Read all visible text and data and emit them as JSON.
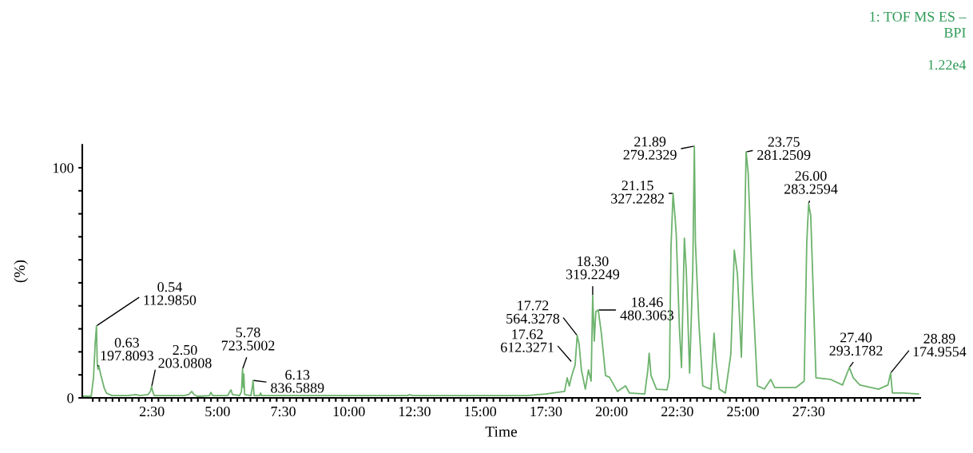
{
  "chart_data": {
    "type": "line",
    "xlabel": "Time",
    "ylabel": "(%)",
    "color": "#6db36d",
    "line_style": "solid",
    "marker": "none",
    "grid": false,
    "legend": false,
    "x": [
      -0.14,
      0.19,
      0.28,
      0.34,
      0.39,
      0.42,
      0.45,
      0.48,
      0.56,
      0.68,
      0.77,
      0.98,
      1.59,
      1.89,
      2.04,
      2.35,
      2.44,
      2.49,
      2.53,
      2.59,
      3.72,
      3.9,
      4.02,
      4.11,
      4.23,
      4.69,
      4.75,
      4.81,
      5.39,
      5.45,
      5.51,
      5.57,
      5.84,
      5.91,
      5.95,
      5.98,
      6.0,
      6.03,
      6.27,
      6.33,
      6.35,
      6.39,
      6.6,
      6.64,
      6.67,
      9.0,
      12.23,
      12.32,
      12.41,
      14.5,
      16.79,
      17.49,
      18.21,
      18.31,
      18.39,
      18.46,
      18.55,
      18.61,
      18.69,
      18.76,
      18.85,
      19.0,
      19.12,
      19.22,
      19.28,
      19.34,
      19.4,
      19.49,
      19.61,
      19.77,
      19.92,
      20.22,
      20.53,
      20.68,
      21.26,
      21.38,
      21.43,
      21.5,
      21.71,
      22.11,
      22.2,
      22.26,
      22.34,
      22.41,
      22.46,
      22.58,
      22.66,
      22.77,
      22.84,
      22.97,
      23.09,
      23.15,
      23.19,
      23.32,
      23.47,
      23.78,
      23.9,
      23.98,
      24.1,
      24.33,
      24.54,
      24.67,
      24.79,
      24.94,
      25.05,
      25.12,
      25.2,
      25.35,
      25.55,
      25.7,
      25.81,
      26.06,
      26.21,
      27.02,
      27.33,
      27.43,
      27.5,
      27.58,
      27.68,
      27.78,
      28.34,
      28.79,
      29.05,
      29.2,
      29.45,
      30.16,
      30.52,
      30.62,
      30.69,
      31.07,
      31.68
    ],
    "values": [
      0.7,
      0.7,
      9.0,
      23.6,
      31.3,
      14.9,
      12.5,
      13.9,
      9.7,
      4.5,
      2.1,
      1.0,
      1.0,
      1.4,
      1.0,
      1.4,
      2.8,
      4.9,
      2.8,
      1.0,
      1.0,
      1.4,
      2.8,
      1.4,
      0.7,
      1.0,
      2.4,
      1.0,
      1.0,
      2.4,
      3.5,
      1.4,
      1.0,
      2.8,
      12.5,
      4.5,
      10.4,
      1.4,
      1.0,
      5.2,
      7.6,
      1.0,
      1.0,
      2.1,
      1.0,
      1.0,
      1.0,
      1.4,
      1.0,
      1.0,
      1.0,
      1.7,
      2.8,
      8.7,
      5.2,
      8.7,
      12.2,
      14.2,
      27.1,
      23.6,
      12.2,
      3.8,
      12.2,
      7.3,
      44.4,
      24.7,
      37.5,
      38.2,
      28.1,
      9.7,
      9.0,
      2.8,
      5.2,
      2.1,
      1.7,
      12.2,
      19.4,
      9.7,
      3.8,
      3.5,
      8.7,
      65.3,
      88.9,
      79.2,
      71.2,
      30.6,
      13.2,
      69.4,
      55.9,
      10.8,
      55.9,
      109.4,
      67.7,
      33.0,
      5.2,
      3.8,
      28.1,
      15.6,
      3.8,
      2.1,
      19.1,
      64.2,
      53.8,
      17.7,
      64.2,
      106.9,
      97.6,
      50.3,
      5.2,
      4.5,
      3.8,
      8.0,
      4.5,
      4.5,
      7.3,
      67.7,
      84.4,
      79.2,
      44.4,
      8.7,
      8.0,
      5.6,
      13.2,
      8.7,
      5.6,
      3.8,
      5.6,
      10.8,
      2.1,
      2.1,
      1.7
    ],
    "xlim": [
      -0.15,
      31.75
    ],
    "ylim": [
      0,
      110
    ],
    "xticks": [
      {
        "value": 0.25,
        "label": null
      },
      {
        "value": 0.5,
        "label": null
      },
      {
        "value": 0.75,
        "label": null
      },
      {
        "value": 1.0,
        "label": null
      },
      {
        "value": 1.25,
        "label": null
      },
      {
        "value": 1.5,
        "label": null
      },
      {
        "value": 1.75,
        "label": null
      },
      {
        "value": 2.0,
        "label": null
      },
      {
        "value": 2.25,
        "label": null
      },
      {
        "value": 2.5,
        "label": "2:30"
      },
      {
        "value": 2.75,
        "label": null
      },
      {
        "value": 3.0,
        "label": null
      },
      {
        "value": 3.25,
        "label": null
      },
      {
        "value": 3.5,
        "label": null
      },
      {
        "value": 3.75,
        "label": null
      },
      {
        "value": 4.0,
        "label": null
      },
      {
        "value": 4.25,
        "label": null
      },
      {
        "value": 4.5,
        "label": null
      },
      {
        "value": 4.75,
        "label": null
      },
      {
        "value": 5.0,
        "label": "5:00"
      },
      {
        "value": 5.25,
        "label": null
      },
      {
        "value": 5.5,
        "label": null
      },
      {
        "value": 5.75,
        "label": null
      },
      {
        "value": 6.0,
        "label": null
      },
      {
        "value": 6.25,
        "label": null
      },
      {
        "value": 6.5,
        "label": null
      },
      {
        "value": 6.75,
        "label": null
      },
      {
        "value": 7.0,
        "label": null
      },
      {
        "value": 7.25,
        "label": null
      },
      {
        "value": 7.5,
        "label": "7:30"
      },
      {
        "value": 7.75,
        "label": null
      },
      {
        "value": 8.0,
        "label": null
      },
      {
        "value": 8.25,
        "label": null
      },
      {
        "value": 8.5,
        "label": null
      },
      {
        "value": 8.75,
        "label": null
      },
      {
        "value": 9.0,
        "label": null
      },
      {
        "value": 9.25,
        "label": null
      },
      {
        "value": 9.5,
        "label": null
      },
      {
        "value": 9.75,
        "label": null
      },
      {
        "value": 10.0,
        "label": "10:00"
      },
      {
        "value": 10.25,
        "label": null
      },
      {
        "value": 10.5,
        "label": null
      },
      {
        "value": 10.75,
        "label": null
      },
      {
        "value": 11.0,
        "label": null
      },
      {
        "value": 11.25,
        "label": null
      },
      {
        "value": 11.5,
        "label": null
      },
      {
        "value": 11.75,
        "label": null
      },
      {
        "value": 12.0,
        "label": null
      },
      {
        "value": 12.25,
        "label": null
      },
      {
        "value": 12.5,
        "label": "12:30"
      },
      {
        "value": 12.75,
        "label": null
      },
      {
        "value": 13.0,
        "label": null
      },
      {
        "value": 13.25,
        "label": null
      },
      {
        "value": 13.5,
        "label": null
      },
      {
        "value": 13.75,
        "label": null
      },
      {
        "value": 14.0,
        "label": null
      },
      {
        "value": 14.25,
        "label": null
      },
      {
        "value": 14.5,
        "label": null
      },
      {
        "value": 14.75,
        "label": null
      },
      {
        "value": 15.0,
        "label": "15:00"
      },
      {
        "value": 15.25,
        "label": null
      },
      {
        "value": 15.5,
        "label": null
      },
      {
        "value": 15.75,
        "label": null
      },
      {
        "value": 16.0,
        "label": null
      },
      {
        "value": 16.25,
        "label": null
      },
      {
        "value": 16.5,
        "label": null
      },
      {
        "value": 16.75,
        "label": null
      },
      {
        "value": 17.0,
        "label": null
      },
      {
        "value": 17.25,
        "label": null
      },
      {
        "value": 17.5,
        "label": "17:30"
      },
      {
        "value": 17.75,
        "label": null
      },
      {
        "value": 18.0,
        "label": null
      },
      {
        "value": 18.25,
        "label": null
      },
      {
        "value": 18.5,
        "label": null
      },
      {
        "value": 18.75,
        "label": null
      },
      {
        "value": 19.0,
        "label": null
      },
      {
        "value": 19.25,
        "label": null
      },
      {
        "value": 19.5,
        "label": null
      },
      {
        "value": 19.75,
        "label": null
      },
      {
        "value": 20.0,
        "label": "20:00"
      },
      {
        "value": 20.25,
        "label": null
      },
      {
        "value": 20.5,
        "label": null
      },
      {
        "value": 20.75,
        "label": null
      },
      {
        "value": 21.0,
        "label": null
      },
      {
        "value": 21.25,
        "label": null
      },
      {
        "value": 21.5,
        "label": null
      },
      {
        "value": 21.75,
        "label": null
      },
      {
        "value": 22.0,
        "label": null
      },
      {
        "value": 22.25,
        "label": null
      },
      {
        "value": 22.5,
        "label": "22:30"
      },
      {
        "value": 22.75,
        "label": null
      },
      {
        "value": 23.0,
        "label": null
      },
      {
        "value": 23.25,
        "label": null
      },
      {
        "value": 23.5,
        "label": null
      },
      {
        "value": 23.75,
        "label": null
      },
      {
        "value": 24.0,
        "label": null
      },
      {
        "value": 24.25,
        "label": null
      },
      {
        "value": 24.5,
        "label": null
      },
      {
        "value": 24.75,
        "label": null
      },
      {
        "value": 25.0,
        "label": "25:00"
      },
      {
        "value": 25.25,
        "label": null
      },
      {
        "value": 25.5,
        "label": null
      },
      {
        "value": 25.75,
        "label": null
      },
      {
        "value": 26.0,
        "label": null
      },
      {
        "value": 26.25,
        "label": null
      },
      {
        "value": 26.5,
        "label": null
      },
      {
        "value": 26.75,
        "label": null
      },
      {
        "value": 27.0,
        "label": null
      },
      {
        "value": 27.25,
        "label": null
      },
      {
        "value": 27.5,
        "label": "27:30"
      },
      {
        "value": 27.75,
        "label": null
      },
      {
        "value": 28.0,
        "label": null
      },
      {
        "value": 28.25,
        "label": null
      },
      {
        "value": 28.5,
        "label": null
      },
      {
        "value": 28.75,
        "label": null
      },
      {
        "value": 29.0,
        "label": null
      },
      {
        "value": 29.25,
        "label": null
      },
      {
        "value": 29.5,
        "label": null
      },
      {
        "value": 29.75,
        "label": null
      },
      {
        "value": 30.0,
        "label": null
      },
      {
        "value": 30.25,
        "label": null
      },
      {
        "value": 30.5,
        "label": null
      },
      {
        "value": 30.75,
        "label": null
      },
      {
        "value": 31.0,
        "label": null
      },
      {
        "value": 31.25,
        "label": null
      },
      {
        "value": 31.5,
        "label": null
      }
    ],
    "yticks": [
      0,
      {
        "value": 10,
        "label": null
      },
      {
        "value": 20,
        "label": null
      },
      {
        "value": 30,
        "label": null
      },
      {
        "value": 40,
        "label": null
      },
      {
        "value": 50,
        "label": null
      },
      {
        "value": 60,
        "label": null
      },
      {
        "value": 70,
        "label": null
      },
      {
        "value": 80,
        "label": null
      },
      {
        "value": 90,
        "label": null
      },
      100
    ],
    "annotations": [
      {
        "text": "1: TOF MS ES –\nBPI\n\n1.22e4"
      },
      {
        "text": "0.54\n112.9850",
        "x": 0.39,
        "y": 31.3
      },
      {
        "text": "0.63\n197.8093",
        "x": 0.45,
        "y": 13.9
      },
      {
        "text": "2.50\n203.0808",
        "x": 2.49,
        "y": 4.9
      },
      {
        "text": "5.78\n723.5002",
        "x": 5.95,
        "y": 12.5
      },
      {
        "text": "6.13\n836.5889",
        "x": 6.35,
        "y": 7.6
      },
      {
        "text": "17.62\n612.3271",
        "x": 18.48,
        "y": 15.6
      },
      {
        "text": "17.72\n564.3278",
        "x": 18.69,
        "y": 27.1
      },
      {
        "text": "18.30\n319.2249",
        "x": 19.28,
        "y": 44.4
      },
      {
        "text": "18.46\n480.3063",
        "x": 19.49,
        "y": 38.2
      },
      {
        "text": "21.15\n327.2282",
        "x": 22.34,
        "y": 88.9
      },
      {
        "text": "21.89\n279.2329",
        "x": 23.15,
        "y": 109.4
      },
      {
        "text": "23.75\n281.2509",
        "x": 25.12,
        "y": 106.9
      },
      {
        "text": "26.00\n283.2594",
        "x": 27.5,
        "y": 84.4
      },
      {
        "text": "27.40\n293.1782",
        "x": 29.05,
        "y": 13.2
      },
      {
        "text": "28.89\n174.9554",
        "x": 30.62,
        "y": 10.8
      }
    ]
  }
}
